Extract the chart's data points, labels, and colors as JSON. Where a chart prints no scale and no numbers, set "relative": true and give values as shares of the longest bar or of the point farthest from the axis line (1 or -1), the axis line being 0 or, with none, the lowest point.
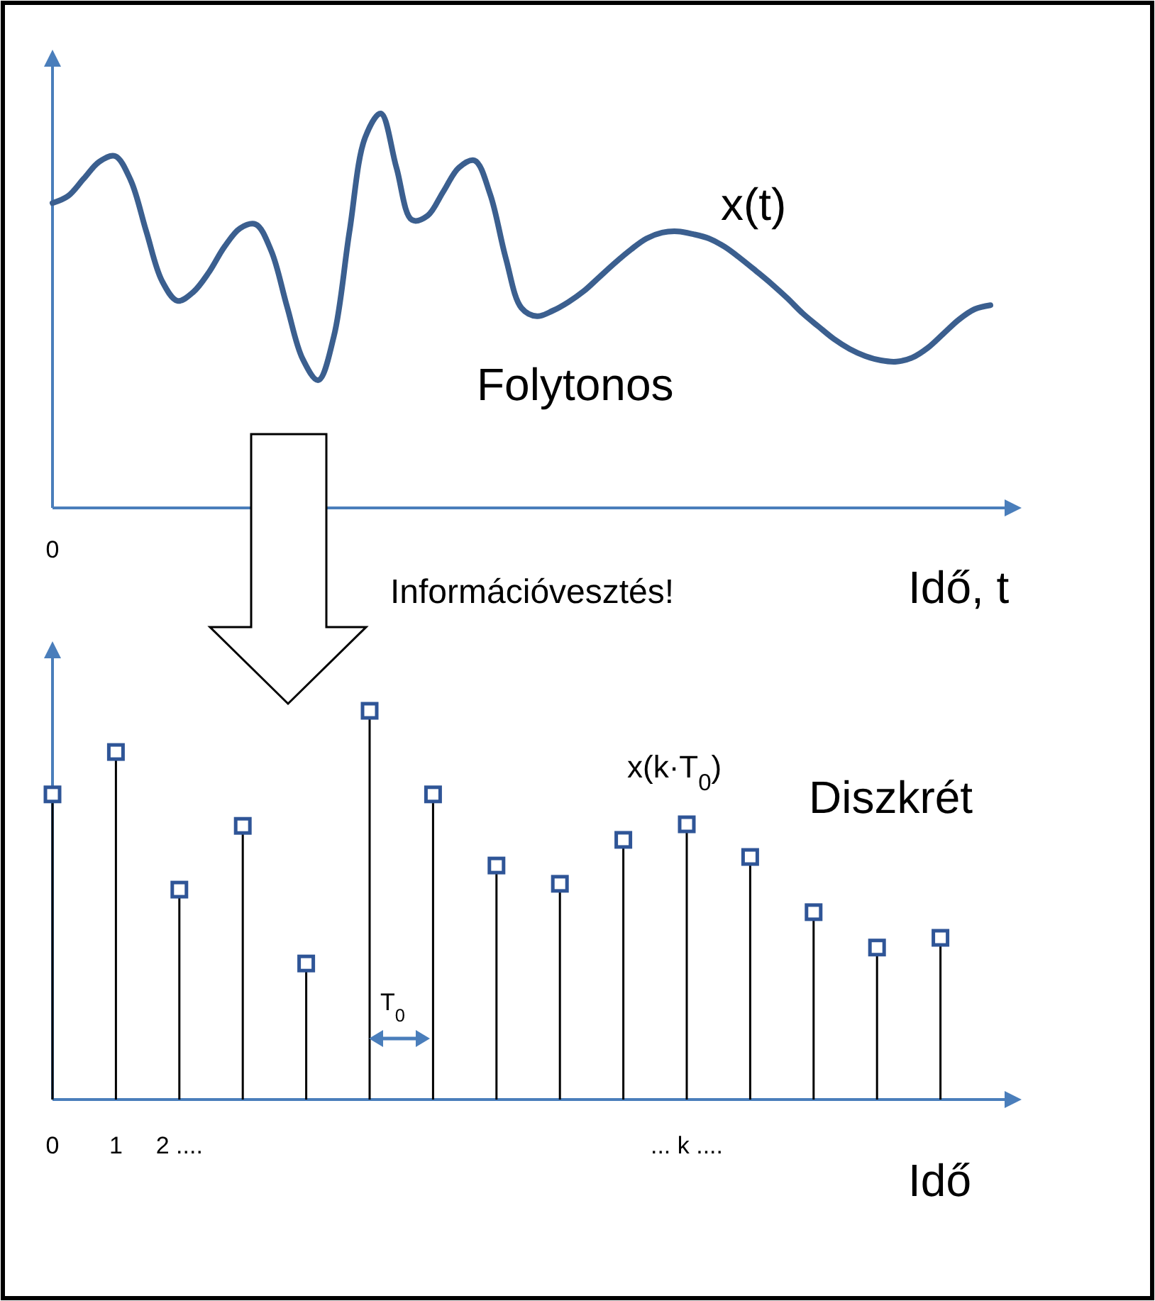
{
  "chart_data": [
    {
      "type": "line",
      "relative": true,
      "xlabel": "Idő, t",
      "color": "#3b5f8f",
      "marker": "none",
      "categories": [
        null,
        null,
        null,
        null,
        null,
        null,
        null,
        null,
        null,
        null,
        null,
        null,
        null,
        null,
        null,
        null,
        null,
        null,
        null,
        null,
        null,
        null,
        null,
        null,
        null,
        null,
        null,
        null,
        null,
        null,
        null,
        null,
        null,
        null,
        null,
        null,
        null,
        null,
        null,
        null,
        null,
        null,
        null,
        null,
        null,
        null,
        null,
        null,
        null,
        null,
        null,
        null,
        null,
        null,
        null,
        null,
        null,
        null,
        null,
        null,
        null
      ],
      "values": [
        0.773,
        0.791,
        0.835,
        0.878,
        0.892,
        0.831,
        0.701,
        0.576,
        0.525,
        0.547,
        0.597,
        0.662,
        0.709,
        0.719,
        0.651,
        0.511,
        0.378,
        0.324,
        0.435,
        0.701,
        0.939,
        1,
        0.863,
        0.73,
        0.741,
        0.802,
        0.863,
        0.881,
        0.795,
        0.633,
        0.507,
        0.486,
        0.5,
        0.522,
        0.55,
        0.586,
        0.622,
        0.655,
        0.683,
        0.698,
        0.701,
        0.694,
        0.683,
        0.662,
        0.633,
        0.601,
        0.568,
        0.532,
        0.493,
        0.46,
        0.428,
        0.403,
        0.385,
        0.374,
        0.371,
        0.381,
        0.406,
        0.442,
        0.478,
        0.504,
        0.514
      ],
      "annotations": [
        "x(t)",
        "Folytonos",
        "Információvesztés!",
        "0"
      ]
    },
    {
      "type": "lollipop",
      "relative": true,
      "xlabel": "Idő",
      "color": "#2f5597",
      "marker": "square",
      "categories": [
        "0",
        "1",
        "2 ....",
        null,
        null,
        null,
        null,
        null,
        null,
        null,
        "... k ....",
        null,
        null,
        null,
        null
      ],
      "values": [
        0.785,
        0.894,
        0.54,
        0.704,
        0.35,
        1,
        0.785,
        0.602,
        0.555,
        0.668,
        0.708,
        0.624,
        0.482,
        0.391,
        0.416
      ],
      "annotations": [
        "x(k·T$_{0}$)",
        "Diszkrét",
        "T$_{0}$"
      ]
    }
  ]
}
